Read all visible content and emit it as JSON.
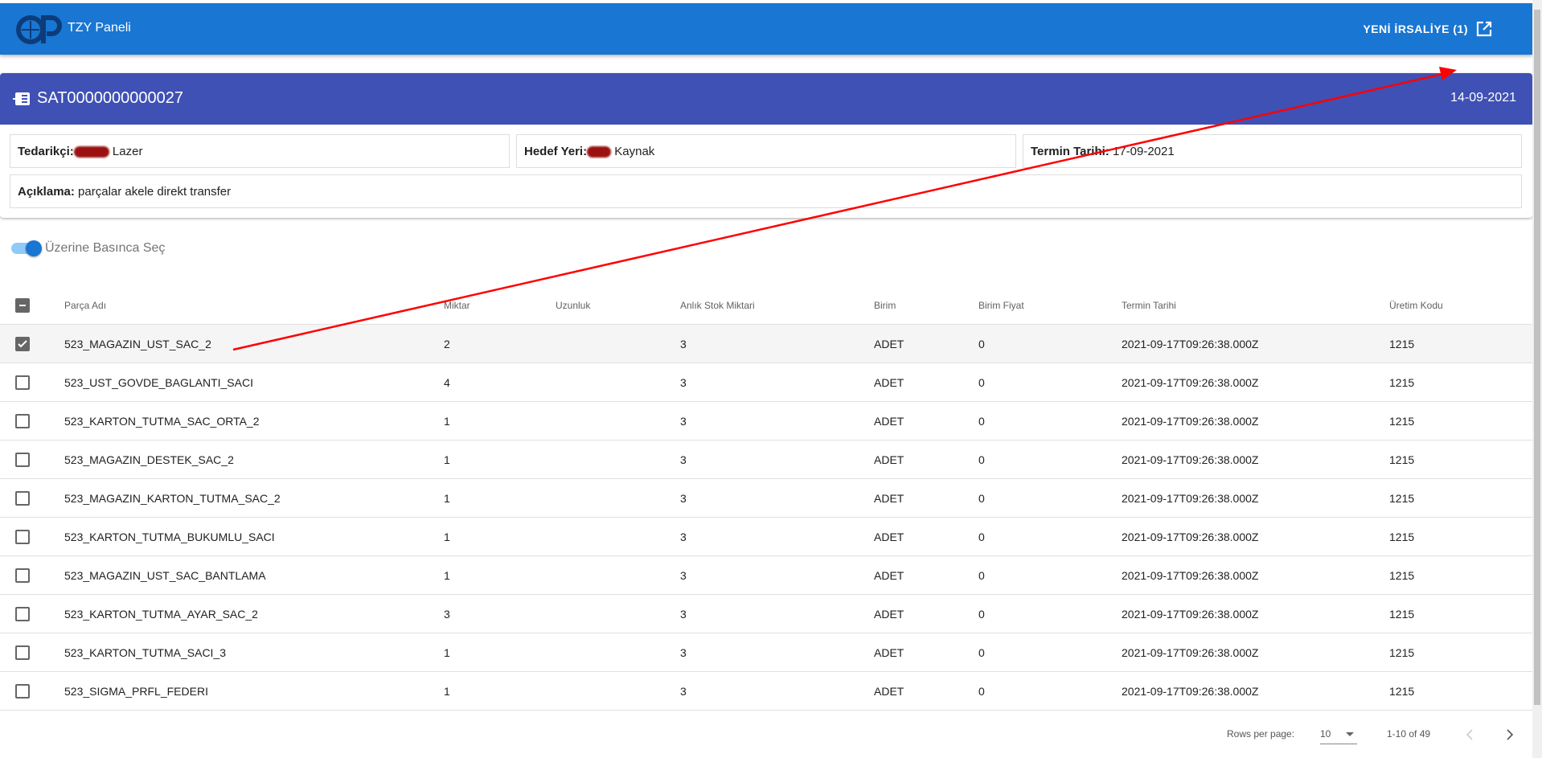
{
  "appbar": {
    "title": "TZY Paneli",
    "new_button": "YENİ İRSALİYE (1)"
  },
  "card": {
    "title": "SAT0000000000027",
    "date": "14-09-2021",
    "supplier_label": "Tedarikçi:",
    "supplier_value": "Lazer",
    "target_label": "Hedef Yeri:",
    "target_value": "Kaynak",
    "due_label": "Termin Tarihi:",
    "due_value": "17-09-2021",
    "desc_label": "Açıklama:",
    "desc_value": "parçalar akele direkt transfer"
  },
  "toggle": {
    "label": "Üzerine Basınca Seç",
    "on": true
  },
  "table": {
    "columns": [
      "Parça Adı",
      "Miktar",
      "Uzunluk",
      "Anlık Stok Miktari",
      "Birim",
      "Birim Fiyat",
      "Termin Tarihi",
      "Üretim Kodu"
    ],
    "rows": [
      {
        "checked": true,
        "cells": [
          "523_MAGAZIN_UST_SAC_2",
          "2",
          "",
          "3",
          "ADET",
          "0",
          "2021-09-17T09:26:38.000Z",
          "1215"
        ]
      },
      {
        "checked": false,
        "cells": [
          "523_UST_GOVDE_BAGLANTI_SACI",
          "4",
          "",
          "3",
          "ADET",
          "0",
          "2021-09-17T09:26:38.000Z",
          "1215"
        ]
      },
      {
        "checked": false,
        "cells": [
          "523_KARTON_TUTMA_SAC_ORTA_2",
          "1",
          "",
          "3",
          "ADET",
          "0",
          "2021-09-17T09:26:38.000Z",
          "1215"
        ]
      },
      {
        "checked": false,
        "cells": [
          "523_MAGAZIN_DESTEK_SAC_2",
          "1",
          "",
          "3",
          "ADET",
          "0",
          "2021-09-17T09:26:38.000Z",
          "1215"
        ]
      },
      {
        "checked": false,
        "cells": [
          "523_MAGAZIN_KARTON_TUTMA_SAC_2",
          "1",
          "",
          "3",
          "ADET",
          "0",
          "2021-09-17T09:26:38.000Z",
          "1215"
        ]
      },
      {
        "checked": false,
        "cells": [
          "523_KARTON_TUTMA_BUKUMLU_SACI",
          "1",
          "",
          "3",
          "ADET",
          "0",
          "2021-09-17T09:26:38.000Z",
          "1215"
        ]
      },
      {
        "checked": false,
        "cells": [
          "523_MAGAZIN_UST_SAC_BANTLAMA",
          "1",
          "",
          "3",
          "ADET",
          "0",
          "2021-09-17T09:26:38.000Z",
          "1215"
        ]
      },
      {
        "checked": false,
        "cells": [
          "523_KARTON_TUTMA_AYAR_SAC_2",
          "3",
          "",
          "3",
          "ADET",
          "0",
          "2021-09-17T09:26:38.000Z",
          "1215"
        ]
      },
      {
        "checked": false,
        "cells": [
          "523_KARTON_TUTMA_SACI_3",
          "1",
          "",
          "3",
          "ADET",
          "0",
          "2021-09-17T09:26:38.000Z",
          "1215"
        ]
      },
      {
        "checked": false,
        "cells": [
          "523_SIGMA_PRFL_FEDERI",
          "1",
          "",
          "3",
          "ADET",
          "0",
          "2021-09-17T09:26:38.000Z",
          "1215"
        ]
      }
    ]
  },
  "footer": {
    "rows_per_page_label": "Rows per page:",
    "rows_per_page": "10",
    "range": "1-10 of 49"
  },
  "colors": {
    "appbar": "#1976d2",
    "card_header": "#3f51b5",
    "annotation_arrow": "#ff0000"
  },
  "icons": {
    "logo": "op-logo",
    "new_button": "open-in-new-icon",
    "card": "document-list-icon"
  }
}
